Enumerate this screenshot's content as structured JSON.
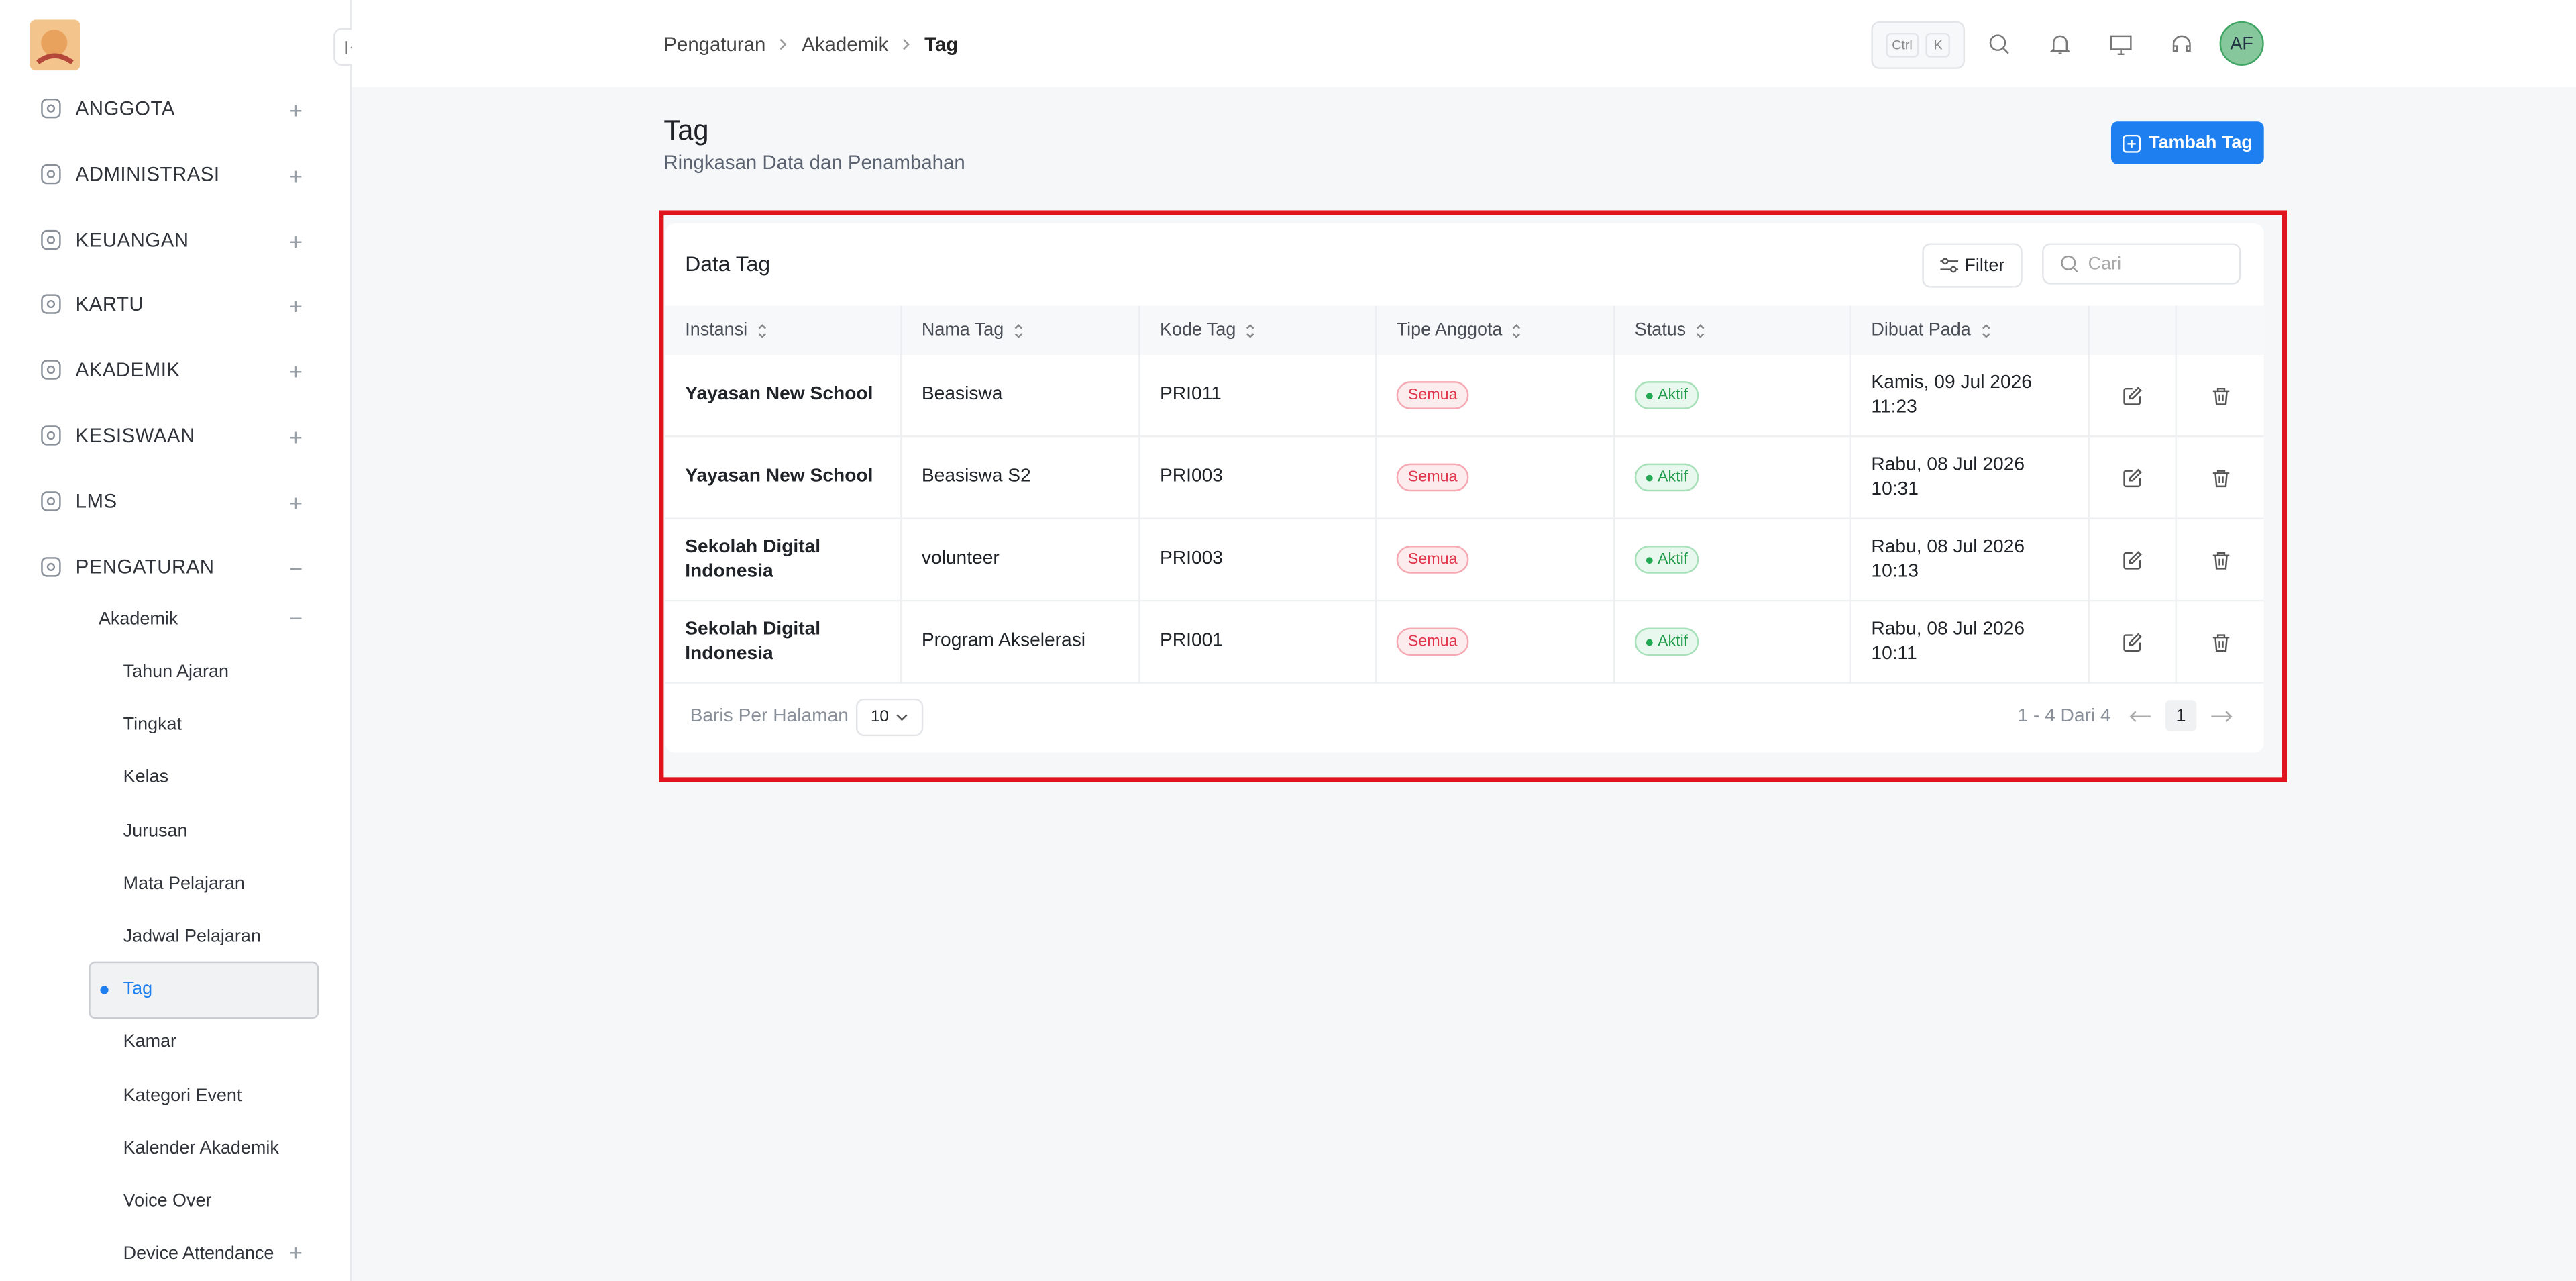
{
  "sidebar": {
    "menu": [
      "ANGGOTA",
      "ADMINISTRASI",
      "KEUANGAN",
      "KARTU",
      "AKADEMIK",
      "KESISWAAN",
      "LMS",
      "PENGATURAN"
    ],
    "submenu": {
      "label": "Akademik",
      "items": [
        "Tahun Ajaran",
        "Tingkat",
        "Kelas",
        "Jurusan",
        "Mata Pelajaran",
        "Jadwal Pelajaran",
        "Tag",
        "Kamar",
        "Kategori Event",
        "Kalender Akademik",
        "Voice Over",
        "Device Attendance"
      ]
    }
  },
  "breadcrumb": [
    "Pengaturan",
    "Akademik",
    "Tag"
  ],
  "shortcut": [
    "Ctrl",
    "K"
  ],
  "avatar": "AF",
  "page": {
    "title": "Tag",
    "subtitle": "Ringkasan Data dan Penambahan",
    "add_button": "Tambah Tag"
  },
  "table": {
    "title": "Data Tag",
    "filter": "Filter",
    "search_placeholder": "Cari",
    "columns": [
      "Instansi",
      "Nama Tag",
      "Kode Tag",
      "Tipe Anggota",
      "Status",
      "Dibuat Pada"
    ],
    "rows": [
      [
        "Yayasan New School",
        "Beasiswa",
        "PRI011",
        "Semua",
        "Aktif",
        "Kamis, 09 Jul 2026 11:23"
      ],
      [
        "Yayasan New School",
        "Beasiswa S2",
        "PRI003",
        "Semua",
        "Aktif",
        "Rabu, 08 Jul 2026 10:31"
      ],
      [
        "Sekolah Digital Indonesia",
        "volunteer",
        "PRI003",
        "Semua",
        "Aktif",
        "Rabu, 08 Jul 2026 10:13"
      ],
      [
        "Sekolah Digital Indonesia",
        "Program Akselerasi",
        "PRI001",
        "Semua",
        "Aktif",
        "Rabu, 08 Jul 2026 10:11"
      ]
    ],
    "rows_per_page_label": "Baris Per Halaman",
    "rows_per_page": "10",
    "range": "1 - 4 Dari 4",
    "page": "1"
  }
}
